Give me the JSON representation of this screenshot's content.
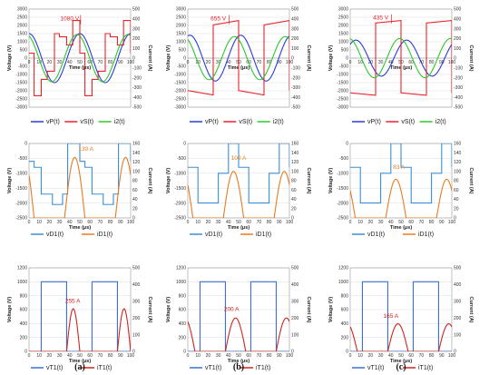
{
  "chart_data": [
    {
      "id": "a1",
      "type": "line",
      "xlabel": "Time (μs)",
      "ylabel": "Voltage (V)",
      "y2label": "Current (A)",
      "xlim": [
        0,
        100
      ],
      "ylim": [
        -3000,
        3000
      ],
      "y2lim": [
        -500,
        500
      ],
      "xticks": [
        "0",
        "10",
        "20",
        "30",
        "40",
        "50",
        "60",
        "70",
        "80",
        "90",
        "100"
      ],
      "yticks": [
        "-3000",
        "-2500",
        "-2000",
        "-1500",
        "-1000",
        "-500",
        "0",
        "500",
        "1000",
        "1500",
        "2000",
        "2500",
        "3000"
      ],
      "y2ticks": [
        "-500",
        "-400",
        "-300",
        "-200",
        "-100",
        "0",
        "100",
        "200",
        "300",
        "400",
        "500"
      ],
      "annotations": [
        {
          "text": "1080 V",
          "color": "#e8232a",
          "x": 40,
          "y": 2300
        }
      ],
      "series": [
        {
          "name": "vP(t)",
          "axis": "left",
          "color": "#2b3bd6",
          "kind": "sine",
          "amplitude": 1500,
          "phase_deg": 0
        },
        {
          "name": "vS(t)",
          "axis": "left",
          "color": "#e8232a",
          "kind": "stair",
          "levels": [
            -1300,
            -700,
            1300,
            2300
          ],
          "amplitude": 2300
        },
        {
          "name": "i2(t)",
          "axis": "right",
          "color": "#2ec52e",
          "kind": "sine",
          "amplitude": 240,
          "phase_deg": 20
        }
      ],
      "legend": [
        "vP(t)",
        "vS(t)",
        "i2(t)"
      ]
    },
    {
      "id": "b1",
      "type": "line",
      "xlabel": "Time (μs)",
      "ylabel": "Voltage (V)",
      "y2label": "Current (A)",
      "xlim": [
        0,
        100
      ],
      "ylim": [
        -3000,
        3000
      ],
      "y2lim": [
        -500,
        500
      ],
      "xticks": [
        "0",
        "10",
        "20",
        "30",
        "40",
        "50",
        "60",
        "70",
        "80",
        "90",
        "100"
      ],
      "yticks": [
        "-3000",
        "-2500",
        "-2000",
        "-1500",
        "-1000",
        "-500",
        "0",
        "500",
        "1000",
        "1500",
        "2000",
        "2500",
        "3000"
      ],
      "y2ticks": [
        "-500",
        "-400",
        "-300",
        "-200",
        "-100",
        "0",
        "100",
        "200",
        "300",
        "400",
        "500"
      ],
      "annotations": [
        {
          "text": "655 V",
          "color": "#e8232a",
          "x": 30,
          "y": 2300
        }
      ],
      "series": [
        {
          "name": "vP(t)",
          "axis": "left",
          "color": "#2b3bd6",
          "kind": "sine",
          "amplitude": 1400,
          "phase_deg": -15
        },
        {
          "name": "vS(t)",
          "axis": "left",
          "color": "#e8232a",
          "kind": "square",
          "amplitude": 2300,
          "droop": 900
        },
        {
          "name": "i2(t)",
          "axis": "right",
          "color": "#2ec52e",
          "kind": "sine",
          "amplitude": 220,
          "phase_deg": 30
        }
      ],
      "legend": [
        "vP(t)",
        "vS(t)",
        "i2(t)"
      ]
    },
    {
      "id": "c1",
      "type": "line",
      "xlabel": "Time (μs)",
      "ylabel": "Voltage (V)",
      "y2label": "Current (A)",
      "xlim": [
        0,
        100
      ],
      "ylim": [
        -3000,
        3000
      ],
      "y2lim": [
        -500,
        500
      ],
      "xticks": [
        "0",
        "10",
        "20",
        "30",
        "40",
        "50",
        "60",
        "70",
        "80",
        "90",
        "100"
      ],
      "yticks": [
        "-3000",
        "-2500",
        "-2000",
        "-1500",
        "-1000",
        "-500",
        "0",
        "500",
        "1000",
        "1500",
        "2000",
        "2500",
        "3000"
      ],
      "y2ticks": [
        "-500",
        "-400",
        "-300",
        "-200",
        "-100",
        "0",
        "100",
        "200",
        "300",
        "400",
        "500"
      ],
      "annotations": [
        {
          "text": "435 V",
          "color": "#e8232a",
          "x": 30,
          "y": 2350
        }
      ],
      "series": [
        {
          "name": "vP(t)",
          "axis": "left",
          "color": "#2b3bd6",
          "kind": "sine",
          "amplitude": 1100,
          "phase_deg": -40
        },
        {
          "name": "vS(t)",
          "axis": "left",
          "color": "#e8232a",
          "kind": "square",
          "amplitude": 2300,
          "droop": 500
        },
        {
          "name": "i2(t)",
          "axis": "right",
          "color": "#2ec52e",
          "kind": "sine",
          "amplitude": 200,
          "phase_deg": 10
        }
      ],
      "legend": [
        "vP(t)",
        "vS(t)",
        "i2(t)"
      ]
    },
    {
      "id": "a2",
      "type": "line",
      "xlabel": "Time (μs)",
      "ylabel": "Voltage (V)",
      "y2label": "Current (A)",
      "xlim": [
        0,
        100
      ],
      "ylim": [
        -2500,
        0
      ],
      "y2lim": [
        0,
        160
      ],
      "xticks": [
        "0",
        "10",
        "20",
        "30",
        "40",
        "50",
        "60",
        "70",
        "80",
        "90",
        "100"
      ],
      "yticks": [
        "-2500",
        "-2000",
        "-1500",
        "-1000",
        "-500",
        "0"
      ],
      "y2ticks": [
        "0",
        "20",
        "40",
        "60",
        "80",
        "100",
        "120",
        "140",
        "160"
      ],
      "annotations": [
        {
          "text": "130 A",
          "color": "#e87b20",
          "x": 56,
          "y": -250
        }
      ],
      "series": [
        {
          "name": "vD1(t)",
          "axis": "left",
          "color": "#3b8fd6",
          "kind": "diode_v_stair",
          "levels": [
            0,
            -800,
            -1700,
            -2050
          ]
        },
        {
          "name": "iD1(t)",
          "axis": "right",
          "color": "#e87b20",
          "kind": "half_sine",
          "peak": 130
        }
      ],
      "legend": [
        "vD1(t)",
        "iD1(t)"
      ]
    },
    {
      "id": "b2",
      "type": "line",
      "xlabel": "Time (μs)",
      "ylabel": "Voltage (V)",
      "y2label": "Current (A)",
      "xlim": [
        0,
        100
      ],
      "ylim": [
        -2500,
        0
      ],
      "y2lim": [
        0,
        160
      ],
      "xticks": [
        "0",
        "10",
        "20",
        "30",
        "40",
        "50",
        "60",
        "70",
        "80",
        "90",
        "100"
      ],
      "yticks": [
        "-2500",
        "-2000",
        "-1500",
        "-1000",
        "-500",
        "0"
      ],
      "y2ticks": [
        "0",
        "20",
        "40",
        "60",
        "80",
        "100",
        "120",
        "140",
        "160"
      ],
      "annotations": [
        {
          "text": "100 A",
          "color": "#e87b20",
          "x": 50,
          "y": -550
        }
      ],
      "series": [
        {
          "name": "vD1(t)",
          "axis": "left",
          "color": "#3b8fd6",
          "kind": "diode_v_square",
          "low": -2000
        },
        {
          "name": "iD1(t)",
          "axis": "right",
          "color": "#e87b20",
          "kind": "half_sine",
          "peak": 100
        }
      ],
      "legend": [
        "vD1(t)",
        "iD1(t)"
      ]
    },
    {
      "id": "c2",
      "type": "line",
      "xlabel": "Time (μs)",
      "ylabel": "Voltage (V)",
      "y2label": "Current (A)",
      "xlim": [
        0,
        100
      ],
      "ylim": [
        -2500,
        0
      ],
      "y2lim": [
        0,
        160
      ],
      "xticks": [
        "0",
        "10",
        "20",
        "30",
        "40",
        "50",
        "60",
        "70",
        "80",
        "90",
        "100"
      ],
      "yticks": [
        "-2500",
        "-2000",
        "-1500",
        "-1000",
        "-500",
        "0"
      ],
      "y2ticks": [
        "0",
        "20",
        "40",
        "60",
        "80",
        "100",
        "120",
        "140",
        "160"
      ],
      "annotations": [
        {
          "text": "83 A",
          "color": "#e87b20",
          "x": 48,
          "y": -850
        }
      ],
      "series": [
        {
          "name": "vD1(t)",
          "axis": "left",
          "color": "#3b8fd6",
          "kind": "diode_v_square",
          "low": -2000
        },
        {
          "name": "iD1(t)",
          "axis": "right",
          "color": "#e87b20",
          "kind": "half_sine",
          "peak": 83
        }
      ],
      "legend": [
        "vD1(t)",
        "iD1(t)"
      ]
    },
    {
      "id": "a3",
      "type": "line",
      "xlabel": "Time (μs)",
      "ylabel": "Voltage (V)",
      "y2label": "Current (A)",
      "xlim": [
        0,
        100
      ],
      "ylim": [
        0,
        1200
      ],
      "y2lim": [
        0,
        500
      ],
      "xticks": [
        "0",
        "10",
        "20",
        "30",
        "40",
        "50",
        "60",
        "70",
        "80",
        "90",
        "100"
      ],
      "yticks": [
        "0",
        "200",
        "400",
        "600",
        "800",
        "1000",
        "1200"
      ],
      "y2ticks": [
        "0",
        "100",
        "200",
        "300",
        "400",
        "500"
      ],
      "annotations": [
        {
          "text": "255 A",
          "color": "#d0241c",
          "x": 43,
          "y": 700
        }
      ],
      "series": [
        {
          "name": "vT1(t)",
          "axis": "left",
          "color": "#3b6fd6",
          "kind": "thyristor_v",
          "high": 1000
        },
        {
          "name": "iT1(t)",
          "axis": "right",
          "color": "#d0241c",
          "kind": "pulse_sine",
          "peak": 255
        }
      ],
      "legend": [
        "vT1(t)",
        "iT1(t)"
      ]
    },
    {
      "id": "b3",
      "type": "line",
      "xlabel": "Time (μs)",
      "ylabel": "Voltage (V)",
      "y2label": "Current (A)",
      "xlim": [
        0,
        100
      ],
      "ylim": [
        0,
        1200
      ],
      "y2lim": [
        0,
        500
      ],
      "xticks": [
        "0",
        "10",
        "20",
        "30",
        "40",
        "50",
        "60",
        "70",
        "80",
        "90",
        "100"
      ],
      "yticks": [
        "0",
        "200",
        "400",
        "600",
        "800",
        "1000",
        "1200"
      ],
      "y2ticks": [
        "0",
        "100",
        "200",
        "300",
        "400",
        "500"
      ],
      "annotations": [
        {
          "text": "200 A",
          "color": "#d0241c",
          "x": 43,
          "y": 580
        }
      ],
      "series": [
        {
          "name": "vT1(t)",
          "axis": "left",
          "color": "#3b6fd6",
          "kind": "thyristor_v",
          "high": 1000
        },
        {
          "name": "iT1(t)",
          "axis": "right",
          "color": "#d0241c",
          "kind": "half_sine_t",
          "peak": 200
        }
      ],
      "legend": [
        "vT1(t)",
        "iT1(t)"
      ]
    },
    {
      "id": "c3",
      "type": "line",
      "xlabel": "Time (μs)",
      "ylabel": "Voltage (V)",
      "y2label": "Current (A)",
      "xlim": [
        0,
        100
      ],
      "ylim": [
        0,
        1200
      ],
      "y2lim": [
        0,
        500
      ],
      "xticks": [
        "0",
        "10",
        "20",
        "30",
        "40",
        "50",
        "60",
        "70",
        "80",
        "90",
        "100"
      ],
      "yticks": [
        "0",
        "200",
        "400",
        "600",
        "800",
        "1000",
        "1200"
      ],
      "y2ticks": [
        "0",
        "100",
        "200",
        "300",
        "400",
        "500"
      ],
      "annotations": [
        {
          "text": "165 A",
          "color": "#d0241c",
          "x": 40,
          "y": 480
        }
      ],
      "series": [
        {
          "name": "vT1(t)",
          "axis": "left",
          "color": "#3b6fd6",
          "kind": "thyristor_v",
          "high": 1000
        },
        {
          "name": "iT1(t)",
          "axis": "right",
          "color": "#d0241c",
          "kind": "half_sine_t",
          "peak": 165
        }
      ],
      "legend": [
        "vT1(t)",
        "iT1(t)"
      ]
    }
  ],
  "captions": [
    "(a)",
    "(b)",
    "(c)"
  ]
}
